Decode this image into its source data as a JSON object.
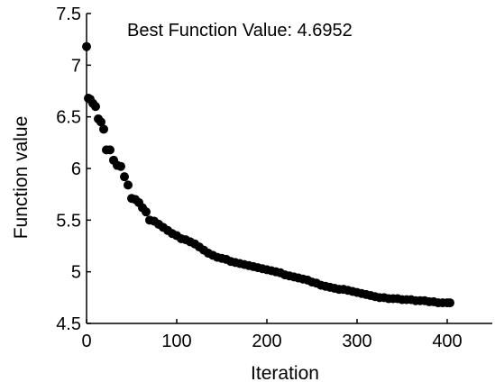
{
  "chart_data": {
    "type": "scatter",
    "title": "",
    "xlabel": "Iteration",
    "ylabel": "Function value",
    "xlim": [
      0,
      450
    ],
    "ylim": [
      4.5,
      7.5
    ],
    "xticks": [
      0,
      100,
      200,
      300,
      400
    ],
    "yticks": [
      4.5,
      5,
      5.5,
      6,
      6.5,
      7,
      7.5
    ],
    "xtick_labels": [
      "0",
      "100",
      "200",
      "300",
      "400"
    ],
    "ytick_labels": [
      "4.5",
      "5",
      "5.5",
      "6",
      "6.5",
      "7",
      "7.5"
    ],
    "grid": false,
    "legend": "none",
    "annotation": "Best Function Value: 4.6952",
    "marker_color": "#000000",
    "series": [
      {
        "name": "",
        "x": [
          0,
          2,
          4,
          7,
          10,
          13,
          16,
          19,
          22,
          26,
          30,
          34,
          38,
          42,
          46,
          50,
          54,
          58,
          62,
          66,
          70,
          75,
          80,
          85,
          90,
          95,
          100,
          105,
          110,
          115,
          120,
          125,
          130,
          135,
          140,
          145,
          150,
          155,
          160,
          165,
          170,
          175,
          180,
          185,
          190,
          195,
          200,
          205,
          210,
          215,
          220,
          225,
          230,
          235,
          240,
          245,
          250,
          255,
          260,
          265,
          270,
          275,
          280,
          285,
          290,
          295,
          300,
          305,
          310,
          315,
          320,
          325,
          330,
          335,
          340,
          345,
          350,
          355,
          360,
          365,
          370,
          375,
          380,
          385,
          390,
          395,
          400,
          403
        ],
        "y": [
          7.18,
          6.68,
          6.67,
          6.63,
          6.6,
          6.48,
          6.45,
          6.38,
          6.18,
          6.18,
          6.08,
          6.03,
          6.02,
          5.92,
          5.84,
          5.71,
          5.7,
          5.67,
          5.62,
          5.58,
          5.5,
          5.49,
          5.46,
          5.43,
          5.4,
          5.37,
          5.35,
          5.32,
          5.31,
          5.29,
          5.27,
          5.24,
          5.21,
          5.18,
          5.16,
          5.14,
          5.13,
          5.12,
          5.1,
          5.09,
          5.08,
          5.07,
          5.06,
          5.05,
          5.04,
          5.03,
          5.02,
          5.01,
          5.0,
          4.99,
          4.97,
          4.96,
          4.95,
          4.94,
          4.93,
          4.92,
          4.9,
          4.89,
          4.87,
          4.86,
          4.85,
          4.84,
          4.83,
          4.83,
          4.82,
          4.81,
          4.8,
          4.79,
          4.78,
          4.77,
          4.76,
          4.75,
          4.75,
          4.74,
          4.74,
          4.74,
          4.73,
          4.73,
          4.73,
          4.72,
          4.72,
          4.72,
          4.71,
          4.71,
          4.7,
          4.7,
          4.7,
          4.7
        ]
      }
    ]
  }
}
